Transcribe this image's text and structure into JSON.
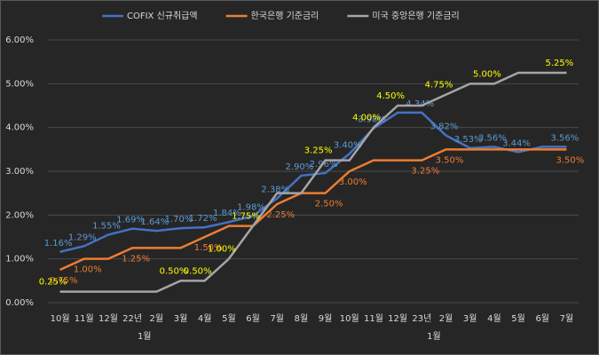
{
  "chart_data": {
    "type": "line",
    "categories": [
      "10월",
      "11월",
      "12월",
      "22년 1월",
      "2월",
      "3월",
      "4월",
      "5월",
      "6월",
      "7월",
      "8월",
      "9월",
      "10월",
      "11월",
      "12월",
      "23년 1월",
      "2월",
      "3월",
      "4월",
      "5월",
      "6월",
      "7월"
    ],
    "ylim": [
      0,
      6
    ],
    "yticks": [
      {
        "value": 0,
        "label": "0.00%"
      },
      {
        "value": 1,
        "label": "1.00%"
      },
      {
        "value": 2,
        "label": "2.00%"
      },
      {
        "value": 3,
        "label": "3.00%"
      },
      {
        "value": 4,
        "label": "4.00%"
      },
      {
        "value": 5,
        "label": "5.00%"
      },
      {
        "value": 6,
        "label": "6.00%"
      }
    ],
    "grid": true,
    "legend": "top",
    "series": [
      {
        "name": "COFIX 신규취급액",
        "color": "#4472c4",
        "label_color": "#5b9bd5",
        "values": [
          1.16,
          1.29,
          1.55,
          1.69,
          1.64,
          1.7,
          1.72,
          1.84,
          1.98,
          2.38,
          2.9,
          2.96,
          3.4,
          3.98,
          4.34,
          4.34,
          3.82,
          3.53,
          3.56,
          3.44,
          3.56,
          3.56
        ],
        "value_labels": [
          "1.16%",
          "1.29%",
          "1.55%",
          "1.69%",
          "1.64%",
          "1.70%",
          "1.72%",
          "1.84%",
          "1.98%",
          "2.38%",
          "2.90%",
          "2.96%",
          "3.40%",
          "3.98%",
          null,
          "4.34%",
          "3.82%",
          "3.53%",
          "3.56%",
          "3.44%",
          null,
          "3.56%"
        ]
      },
      {
        "name": "한국은행 기준금리",
        "color": "#ed7d31",
        "label_color": "#ed7d31",
        "values": [
          0.75,
          1.0,
          1.0,
          1.25,
          1.25,
          1.25,
          1.5,
          1.75,
          1.75,
          2.25,
          2.5,
          2.5,
          3.0,
          3.25,
          3.25,
          3.25,
          3.5,
          3.5,
          3.5,
          3.5,
          3.5,
          3.5
        ],
        "value_labels": [
          "0.75%",
          "1.00%",
          null,
          "1.25%",
          null,
          null,
          "1.50%",
          null,
          null,
          "2.25%",
          null,
          "2.50%",
          "3.00%",
          null,
          null,
          "3.25%",
          "3.50%",
          null,
          null,
          null,
          null,
          "3.50%"
        ]
      },
      {
        "name": "미국 중앙은행 기준금리",
        "color": "#a5a5a5",
        "label_color": "#ffff00",
        "values": [
          0.25,
          0.25,
          0.25,
          0.25,
          0.25,
          0.5,
          0.5,
          1.0,
          1.75,
          2.5,
          2.5,
          3.25,
          3.25,
          4.0,
          4.5,
          4.5,
          4.75,
          5.0,
          5.0,
          5.25,
          5.25,
          5.25
        ],
        "value_labels": [
          "0.25%",
          null,
          null,
          null,
          null,
          "0.50%",
          "0.50%",
          "1.00%",
          "1.75%",
          null,
          null,
          "3.25%",
          null,
          "4.00%",
          "4.50%",
          null,
          "4.75%",
          null,
          "5.00%",
          null,
          null,
          "5.25%"
        ]
      }
    ]
  }
}
